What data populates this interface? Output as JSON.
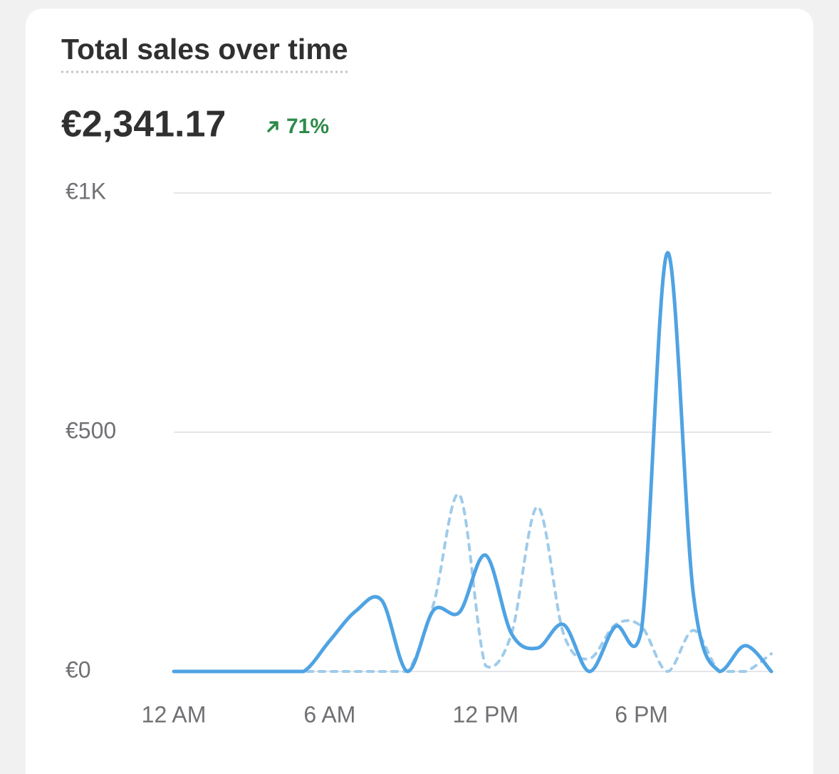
{
  "chart_data": {
    "type": "line",
    "title": "Total sales over time",
    "total": "€2,341.17",
    "change": "71%",
    "x": [
      0,
      1,
      2,
      3,
      4,
      5,
      6,
      7,
      8,
      9,
      10,
      11,
      12,
      13,
      14,
      15,
      16,
      17,
      18,
      19,
      20,
      21,
      22,
      23
    ],
    "xlim": [
      0,
      23
    ],
    "xticks": [
      {
        "value": 0,
        "label": "12 AM"
      },
      {
        "value": 6,
        "label": "6 AM"
      },
      {
        "value": 12,
        "label": "12 PM"
      },
      {
        "value": 18,
        "label": "6 PM"
      }
    ],
    "ylim": [
      0,
      1000
    ],
    "yticks": [
      {
        "value": 0,
        "label": "€0"
      },
      {
        "value": 500,
        "label": "€500"
      },
      {
        "value": 1000,
        "label": "€1K"
      }
    ],
    "grid": true,
    "series": [
      {
        "color": "#9fcbea",
        "dashed": true,
        "values": [
          0,
          0,
          0,
          0,
          0,
          0,
          0,
          0,
          0,
          0,
          141,
          369,
          12,
          79,
          344,
          79,
          27,
          98,
          94,
          0,
          86,
          0,
          0,
          37
        ]
      },
      {
        "color": "#4fa3e3",
        "dashed": false,
        "values": [
          0,
          0,
          0,
          0,
          0,
          0,
          64,
          126,
          149,
          0,
          128,
          124,
          243,
          79,
          49,
          98,
          0,
          94,
          86,
          875,
          161,
          0,
          54,
          0
        ]
      }
    ]
  }
}
